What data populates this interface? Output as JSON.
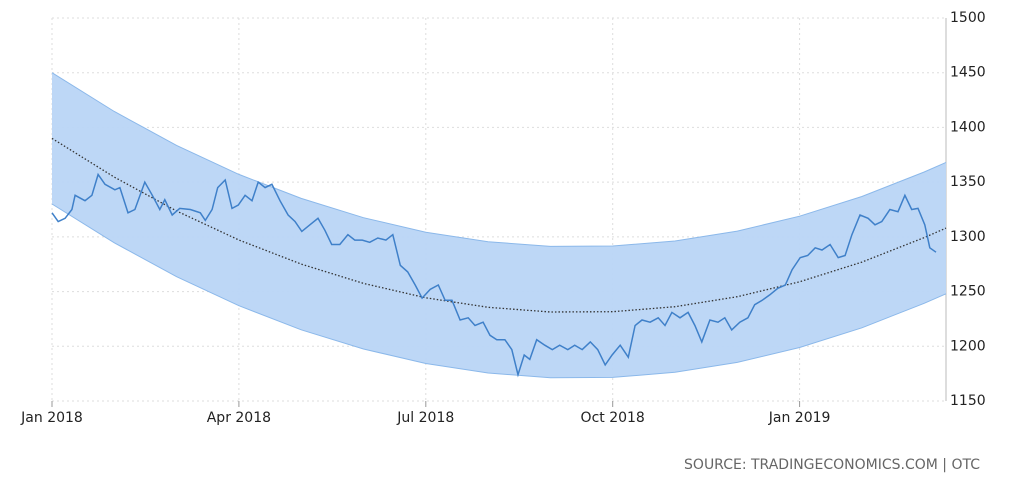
{
  "chart_data": {
    "type": "line",
    "source": "SOURCE: TRADINGECONOMICS.COM | OTC",
    "xlim": [
      0,
      14.35
    ],
    "xticks": [
      {
        "value": 0,
        "label": "Jan 2018"
      },
      {
        "value": 3,
        "label": "Apr 2018"
      },
      {
        "value": 6,
        "label": "Jul 2018"
      },
      {
        "value": 9,
        "label": "Oct 2018"
      },
      {
        "value": 12,
        "label": "Jan 2019"
      }
    ],
    "ylim": [
      1150,
      1500
    ],
    "yticks": [
      1150,
      1200,
      1250,
      1300,
      1350,
      1400,
      1450,
      1500
    ],
    "grid": true,
    "series": [
      {
        "type": "band",
        "color": "#b9d5f6",
        "edge_color": "#8bb8ea",
        "x": [
          0,
          1,
          2,
          3,
          4,
          5,
          6,
          7,
          8,
          9,
          10,
          11,
          12,
          13,
          14,
          14.35
        ],
        "upper": [
          1450,
          1414.6,
          1383.6,
          1357.1,
          1335.1,
          1317.5,
          1304.3,
          1295.6,
          1291.3,
          1291.6,
          1296.2,
          1305.3,
          1318.9,
          1336.9,
          1359.3,
          1368
        ],
        "lower": [
          1330,
          1294.6,
          1263.6,
          1237.1,
          1215.1,
          1197.5,
          1184.3,
          1175.6,
          1171.3,
          1171.6,
          1176.2,
          1185.3,
          1198.9,
          1216.9,
          1239.3,
          1248
        ]
      },
      {
        "type": "trend",
        "color": "#333333",
        "x": [
          0,
          1,
          2,
          3,
          4,
          5,
          6,
          7,
          8,
          9,
          10,
          11,
          12,
          13,
          14,
          14.35
        ],
        "values": [
          1390,
          1354.6,
          1323.6,
          1297.1,
          1275.1,
          1257.5,
          1244.3,
          1235.6,
          1231.3,
          1231.6,
          1236.2,
          1245.3,
          1258.9,
          1276.9,
          1299.3,
          1308
        ]
      },
      {
        "type": "line",
        "color": "#3f80c9",
        "x": [
          0,
          0.1,
          0.21,
          0.32,
          0.37,
          0.53,
          0.64,
          0.74,
          0.85,
          1.01,
          1.09,
          1.22,
          1.33,
          1.49,
          1.61,
          1.73,
          1.81,
          1.93,
          2.05,
          2.22,
          2.38,
          2.46,
          2.57,
          2.66,
          2.78,
          2.89,
          2.99,
          3.1,
          3.21,
          3.31,
          3.42,
          3.53,
          3.66,
          3.79,
          3.9,
          4.01,
          4.14,
          4.27,
          4.38,
          4.49,
          4.62,
          4.75,
          4.86,
          4.98,
          5.1,
          5.23,
          5.36,
          5.47,
          5.59,
          5.71,
          5.83,
          5.94,
          6.07,
          6.2,
          6.31,
          6.42,
          6.55,
          6.68,
          6.79,
          6.92,
          7.03,
          7.14,
          7.27,
          7.38,
          7.48,
          7.58,
          7.67,
          7.78,
          7.91,
          8.03,
          8.15,
          8.28,
          8.39,
          8.51,
          8.64,
          8.76,
          8.88,
          8.99,
          9.12,
          9.25,
          9.36,
          9.47,
          9.6,
          9.73,
          9.84,
          9.95,
          10.08,
          10.21,
          10.32,
          10.43,
          10.56,
          10.69,
          10.8,
          10.91,
          11.04,
          11.17,
          11.28,
          11.4,
          11.52,
          11.65,
          11.77,
          11.88,
          12.01,
          12.13,
          12.25,
          12.36,
          12.49,
          12.62,
          12.73,
          12.84,
          12.97,
          13.1,
          13.21,
          13.32,
          13.45,
          13.58,
          13.69,
          13.8,
          13.9,
          14.01,
          14.09,
          14.19
        ],
        "values": [
          1322,
          1314,
          1317,
          1325,
          1338,
          1333,
          1338,
          1357,
          1348,
          1343,
          1345,
          1322,
          1325,
          1350,
          1338,
          1325,
          1334,
          1320,
          1326,
          1325,
          1322,
          1315,
          1325,
          1345,
          1352,
          1326,
          1329,
          1338,
          1333,
          1350,
          1345,
          1348,
          1333,
          1320,
          1314,
          1305,
          1311,
          1317,
          1306,
          1293,
          1293,
          1302,
          1297,
          1297,
          1295,
          1299,
          1297,
          1302,
          1274,
          1268,
          1256,
          1244,
          1252,
          1256,
          1242,
          1242,
          1224,
          1226,
          1219,
          1222,
          1210,
          1206,
          1206,
          1197,
          1174,
          1192,
          1188,
          1206,
          1201,
          1197,
          1201,
          1197,
          1201,
          1197,
          1204,
          1197,
          1183,
          1192,
          1201,
          1190,
          1219,
          1224,
          1222,
          1226,
          1219,
          1231,
          1226,
          1231,
          1219,
          1204,
          1224,
          1222,
          1226,
          1215,
          1222,
          1226,
          1238,
          1242,
          1247,
          1253,
          1256,
          1270,
          1281,
          1283,
          1290,
          1288,
          1293,
          1281,
          1283,
          1302,
          1320,
          1317,
          1311,
          1314,
          1325,
          1323,
          1338,
          1325,
          1326,
          1311,
          1290,
          1286
        ]
      }
    ]
  }
}
